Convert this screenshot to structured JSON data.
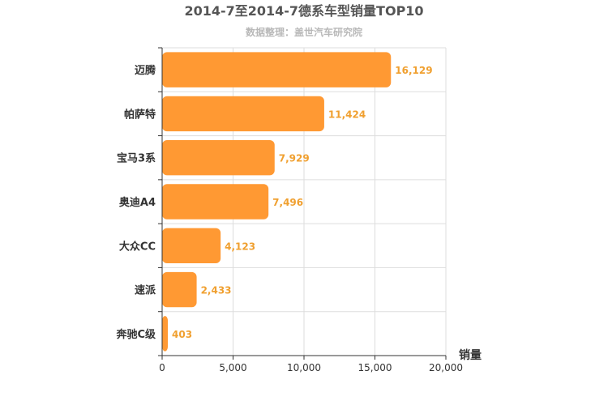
{
  "chart_data": {
    "type": "bar",
    "orientation": "horizontal",
    "title": "2014-7至2014-7德系车型销量TOP10",
    "subtitle": "数据整理：盖世汽车研究院",
    "xlabel": "销量",
    "ylabel": "",
    "categories": [
      "迈腾",
      "帕萨特",
      "宝马3系",
      "奥迪A4",
      "大众CC",
      "速派",
      "奔驰C级"
    ],
    "values": [
      16129,
      11424,
      7929,
      7496,
      4123,
      2433,
      403
    ],
    "value_labels": [
      "16,129",
      "11,424",
      "7,929",
      "7,496",
      "4,123",
      "2,433",
      "403"
    ],
    "xlim": [
      0,
      20000
    ],
    "xticks": [
      0,
      5000,
      10000,
      15000,
      20000
    ],
    "xtick_labels": [
      "0",
      "5,000",
      "10,000",
      "15,000",
      "20,000"
    ],
    "grid": true,
    "legend": "none",
    "colors": {
      "bar": "#ff9933",
      "value_label": "#f0a030",
      "grid": "#dddddd",
      "axis": "#333333"
    }
  }
}
